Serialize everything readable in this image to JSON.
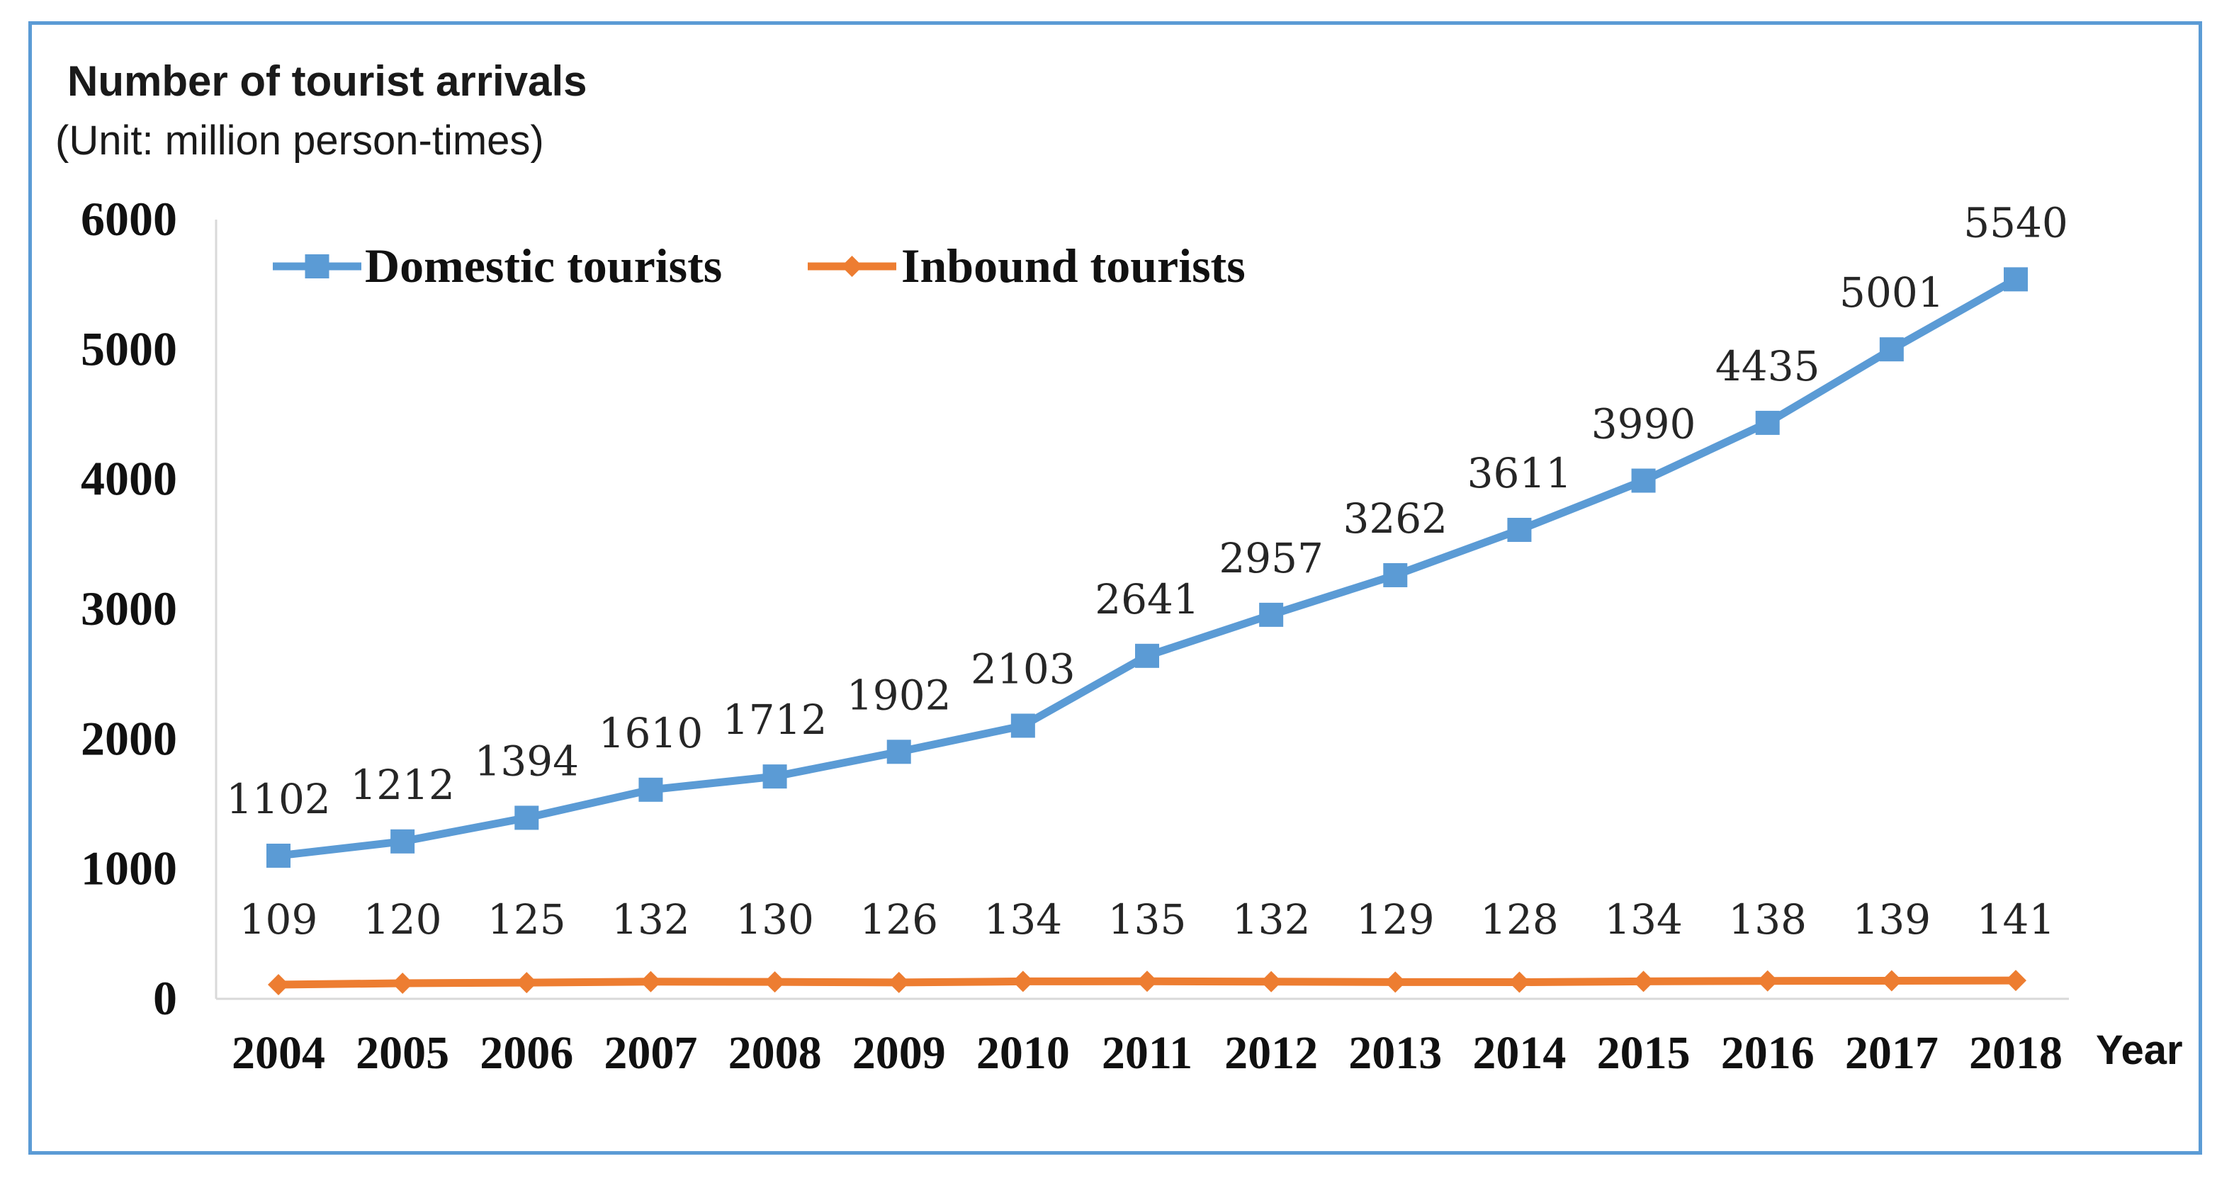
{
  "chart_data": {
    "type": "line",
    "title": "Number of tourist arrivals",
    "subtitle": "(Unit: million person-times)",
    "xlabel": "Year",
    "ylabel": "",
    "ylim": [
      0,
      6000
    ],
    "yticks": [
      0,
      1000,
      2000,
      3000,
      4000,
      5000,
      6000
    ],
    "categories": [
      "2004",
      "2005",
      "2006",
      "2007",
      "2008",
      "2009",
      "2010",
      "2011",
      "2012",
      "2013",
      "2014",
      "2015",
      "2016",
      "2017",
      "2018"
    ],
    "legend_position": "top-left",
    "series": [
      {
        "name": "Domestic tourists",
        "color": "#5b9bd5",
        "marker": "square",
        "values": [
          1102,
          1212,
          1394,
          1610,
          1712,
          1902,
          2103,
          2641,
          2957,
          3262,
          3611,
          3990,
          4435,
          5001,
          5540
        ]
      },
      {
        "name": "Inbound tourists",
        "color": "#ed7d31",
        "marker": "diamond",
        "values": [
          109,
          120,
          125,
          132,
          130,
          126,
          134,
          135,
          132,
          129,
          128,
          134,
          138,
          139,
          141
        ]
      }
    ]
  }
}
